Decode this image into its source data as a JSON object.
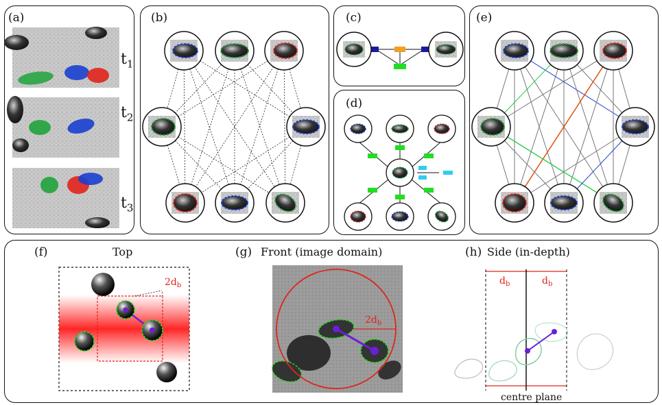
{
  "panels": {
    "a": "(a)",
    "b": "(b)",
    "c": "(c)",
    "d": "(d)",
    "e": "(e)",
    "f": "(f)",
    "g": "(g)",
    "h": "(h)"
  },
  "time_labels": [
    {
      "base": "t",
      "sub": "1"
    },
    {
      "base": "t",
      "sub": "2"
    },
    {
      "base": "t",
      "sub": "3"
    }
  ],
  "titles": {
    "top": "Top",
    "front": "Front (image domain)",
    "side": "Side (in-depth)"
  },
  "annotations": {
    "f_dim": {
      "base": "2d",
      "sub": "b"
    },
    "g_dim": {
      "base": "2d",
      "sub": "b"
    },
    "h_left": {
      "base": "d",
      "sub": "b"
    },
    "h_right": {
      "base": "d",
      "sub": "b"
    },
    "centre_plane": "centre plane"
  },
  "colors": {
    "blue": "#1a3fd0",
    "green": "#1fa33a",
    "red": "#e0241b",
    "orange": "#f0a020",
    "lime": "#22dd22",
    "cyan": "#33ccee",
    "navy": "#1a1aa0",
    "purple": "#6a1fd8"
  }
}
